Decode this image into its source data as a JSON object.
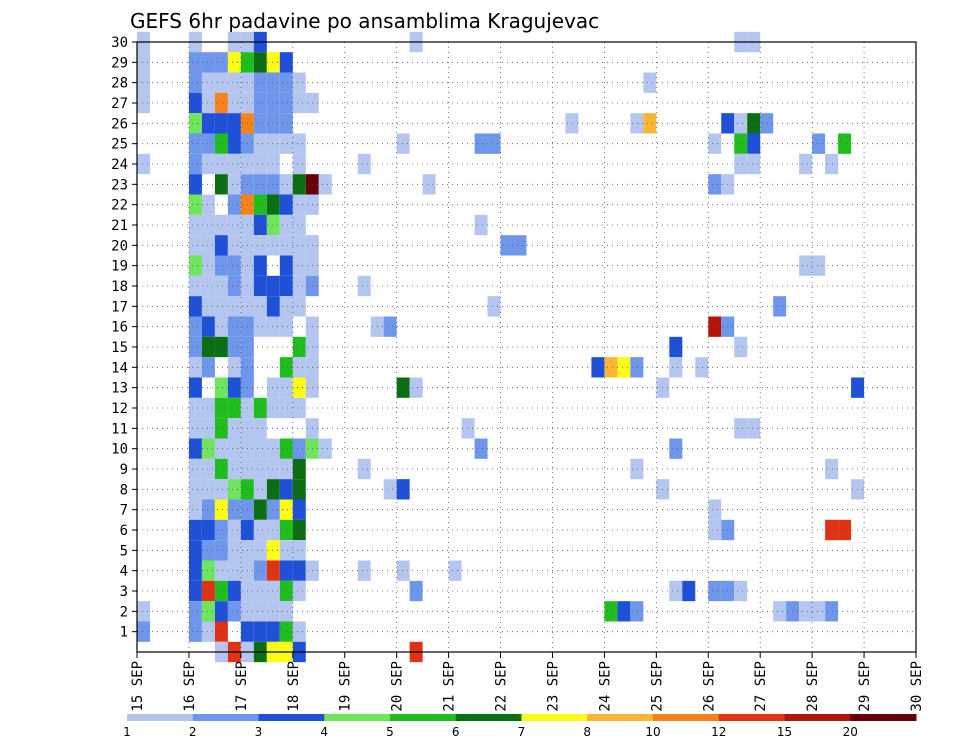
{
  "chart_data": {
    "type": "heatmap",
    "title": "GEFS 6hr padavine po ansamblima Kragujevac",
    "xlabel": "",
    "ylabel": "",
    "x_ticks": [
      "15 SEP",
      "16 SEP",
      "17 SEP",
      "18 SEP",
      "19 SEP",
      "20 SEP",
      "21 SEP",
      "22 SEP",
      "23 SEP",
      "24 SEP",
      "25 SEP",
      "26 SEP",
      "27 SEP",
      "28 SEP",
      "29 SEP",
      "30 SEP"
    ],
    "x_range_days": [
      15,
      30
    ],
    "y_range": [
      0,
      30
    ],
    "y_ticks": [
      1,
      2,
      3,
      4,
      5,
      6,
      7,
      8,
      9,
      10,
      11,
      12,
      13,
      14,
      15,
      16,
      17,
      18,
      19,
      20,
      21,
      22,
      23,
      24,
      25,
      26,
      27,
      28,
      29,
      30
    ],
    "grid": true,
    "colorbar": {
      "bins": [
        1,
        2,
        3,
        4,
        5,
        6,
        7,
        8,
        10,
        12,
        15,
        20
      ],
      "labels": [
        "1",
        "2",
        "3",
        "4",
        "5",
        "6",
        "7",
        "8",
        "10",
        "12",
        "15",
        "20"
      ],
      "colors": [
        "#b4c6f0",
        "#6e97ec",
        "#1f50d8",
        "#6fe45d",
        "#1fbe1e",
        "#0b6e12",
        "#fcfc14",
        "#fcb434",
        "#f6821a",
        "#e03214",
        "#b4140a",
        "#64000a"
      ]
    },
    "cells_note": "Each cell: [day_index (6h steps from 15 SEP 00z), member, colour class 0-11 (0 = 1 mm bin)]",
    "cells": [
      [
        0,
        30,
        0
      ],
      [
        0,
        29,
        0
      ],
      [
        0,
        28,
        0
      ],
      [
        0,
        27,
        0
      ],
      [
        0,
        24,
        0
      ],
      [
        0,
        2,
        0
      ],
      [
        0,
        1,
        1
      ],
      [
        4,
        30,
        0
      ],
      [
        4,
        29,
        1
      ],
      [
        4,
        28,
        1
      ],
      [
        4,
        27,
        2
      ],
      [
        4,
        26,
        3
      ],
      [
        4,
        25,
        1
      ],
      [
        4,
        24,
        1
      ],
      [
        4,
        23,
        2
      ],
      [
        4,
        22,
        3
      ],
      [
        4,
        21,
        0
      ],
      [
        4,
        20,
        0
      ],
      [
        4,
        19,
        3
      ],
      [
        4,
        18,
        0
      ],
      [
        4,
        17,
        2
      ],
      [
        4,
        16,
        1
      ],
      [
        4,
        15,
        1
      ],
      [
        4,
        14,
        0
      ],
      [
        4,
        13,
        2
      ],
      [
        4,
        12,
        0
      ],
      [
        4,
        11,
        0
      ],
      [
        4,
        10,
        2
      ],
      [
        4,
        9,
        0
      ],
      [
        4,
        8,
        0
      ],
      [
        4,
        7,
        0
      ],
      [
        4,
        6,
        2
      ],
      [
        4,
        5,
        2
      ],
      [
        4,
        4,
        2
      ],
      [
        4,
        3,
        2
      ],
      [
        4,
        2,
        1
      ],
      [
        4,
        1,
        1
      ],
      [
        5,
        29,
        1
      ],
      [
        5,
        28,
        0
      ],
      [
        5,
        27,
        0
      ],
      [
        5,
        26,
        2
      ],
      [
        5,
        25,
        1
      ],
      [
        5,
        24,
        0
      ],
      [
        5,
        22,
        0
      ],
      [
        5,
        21,
        0
      ],
      [
        5,
        20,
        0
      ],
      [
        5,
        19,
        0
      ],
      [
        5,
        18,
        0
      ],
      [
        5,
        17,
        0
      ],
      [
        5,
        16,
        2
      ],
      [
        5,
        15,
        5
      ],
      [
        5,
        14,
        1
      ],
      [
        5,
        12,
        0
      ],
      [
        5,
        11,
        0
      ],
      [
        5,
        10,
        3
      ],
      [
        5,
        9,
        0
      ],
      [
        5,
        8,
        0
      ],
      [
        5,
        7,
        1
      ],
      [
        5,
        6,
        2
      ],
      [
        5,
        5,
        1
      ],
      [
        5,
        4,
        3
      ],
      [
        5,
        3,
        9
      ],
      [
        5,
        2,
        3
      ],
      [
        5,
        1,
        0
      ],
      [
        6,
        29,
        1
      ],
      [
        6,
        28,
        0
      ],
      [
        6,
        27,
        8
      ],
      [
        6,
        26,
        2
      ],
      [
        6,
        25,
        4
      ],
      [
        6,
        24,
        0
      ],
      [
        6,
        23,
        5
      ],
      [
        6,
        21,
        0
      ],
      [
        6,
        20,
        2
      ],
      [
        6,
        19,
        1
      ],
      [
        6,
        18,
        0
      ],
      [
        6,
        17,
        0
      ],
      [
        6,
        16,
        0
      ],
      [
        6,
        15,
        5
      ],
      [
        6,
        13,
        3
      ],
      [
        6,
        12,
        4
      ],
      [
        6,
        11,
        4
      ],
      [
        6,
        10,
        0
      ],
      [
        6,
        9,
        4
      ],
      [
        6,
        8,
        0
      ],
      [
        6,
        7,
        6
      ],
      [
        6,
        6,
        1
      ],
      [
        6,
        5,
        1
      ],
      [
        6,
        4,
        0
      ],
      [
        6,
        3,
        4
      ],
      [
        6,
        2,
        2
      ],
      [
        6,
        1,
        9
      ],
      [
        6,
        0,
        0
      ],
      [
        7,
        30,
        0
      ],
      [
        7,
        29,
        6
      ],
      [
        7,
        28,
        0
      ],
      [
        7,
        27,
        0
      ],
      [
        7,
        26,
        2
      ],
      [
        7,
        25,
        2
      ],
      [
        7,
        24,
        0
      ],
      [
        7,
        23,
        0
      ],
      [
        7,
        22,
        1
      ],
      [
        7,
        21,
        0
      ],
      [
        7,
        20,
        0
      ],
      [
        7,
        19,
        1
      ],
      [
        7,
        18,
        1
      ],
      [
        7,
        17,
        0
      ],
      [
        7,
        16,
        1
      ],
      [
        7,
        15,
        1
      ],
      [
        7,
        14,
        0
      ],
      [
        7,
        13,
        2
      ],
      [
        7,
        12,
        4
      ],
      [
        7,
        11,
        0
      ],
      [
        7,
        10,
        0
      ],
      [
        7,
        9,
        0
      ],
      [
        7,
        8,
        3
      ],
      [
        7,
        7,
        1
      ],
      [
        7,
        6,
        0
      ],
      [
        7,
        5,
        0
      ],
      [
        7,
        4,
        0
      ],
      [
        7,
        3,
        2
      ],
      [
        7,
        2,
        1
      ],
      [
        7,
        0,
        9
      ],
      [
        8,
        30,
        0
      ],
      [
        8,
        29,
        4
      ],
      [
        8,
        28,
        0
      ],
      [
        8,
        27,
        0
      ],
      [
        8,
        26,
        8
      ],
      [
        8,
        25,
        1
      ],
      [
        8,
        24,
        0
      ],
      [
        8,
        23,
        1
      ],
      [
        8,
        22,
        8
      ],
      [
        8,
        21,
        0
      ],
      [
        8,
        20,
        0
      ],
      [
        8,
        19,
        0
      ],
      [
        8,
        18,
        0
      ],
      [
        8,
        17,
        0
      ],
      [
        8,
        16,
        1
      ],
      [
        8,
        15,
        1
      ],
      [
        8,
        14,
        1
      ],
      [
        8,
        13,
        1
      ],
      [
        8,
        12,
        0
      ],
      [
        8,
        11,
        0
      ],
      [
        8,
        10,
        0
      ],
      [
        8,
        9,
        0
      ],
      [
        8,
        8,
        4
      ],
      [
        8,
        7,
        1
      ],
      [
        8,
        6,
        2
      ],
      [
        8,
        5,
        0
      ],
      [
        8,
        4,
        0
      ],
      [
        8,
        3,
        0
      ],
      [
        8,
        2,
        0
      ],
      [
        8,
        1,
        2
      ],
      [
        8,
        0,
        0
      ],
      [
        9,
        30,
        2
      ],
      [
        9,
        29,
        5
      ],
      [
        9,
        28,
        1
      ],
      [
        9,
        27,
        1
      ],
      [
        9,
        26,
        1
      ],
      [
        9,
        25,
        0
      ],
      [
        9,
        24,
        0
      ],
      [
        9,
        23,
        1
      ],
      [
        9,
        22,
        4
      ],
      [
        9,
        21,
        2
      ],
      [
        9,
        20,
        0
      ],
      [
        9,
        19,
        2
      ],
      [
        9,
        18,
        2
      ],
      [
        9,
        17,
        0
      ],
      [
        9,
        16,
        0
      ],
      [
        9,
        12,
        4
      ],
      [
        9,
        11,
        0
      ],
      [
        9,
        10,
        0
      ],
      [
        9,
        9,
        0
      ],
      [
        9,
        8,
        0
      ],
      [
        9,
        7,
        5
      ],
      [
        9,
        6,
        0
      ],
      [
        9,
        5,
        0
      ],
      [
        9,
        4,
        1
      ],
      [
        9,
        3,
        0
      ],
      [
        9,
        2,
        0
      ],
      [
        9,
        1,
        2
      ],
      [
        9,
        0,
        5
      ],
      [
        10,
        29,
        6
      ],
      [
        10,
        28,
        1
      ],
      [
        10,
        27,
        1
      ],
      [
        10,
        26,
        1
      ],
      [
        10,
        25,
        0
      ],
      [
        10,
        24,
        0
      ],
      [
        10,
        23,
        1
      ],
      [
        10,
        22,
        5
      ],
      [
        10,
        21,
        3
      ],
      [
        10,
        20,
        0
      ],
      [
        10,
        18,
        2
      ],
      [
        10,
        17,
        2
      ],
      [
        10,
        16,
        0
      ],
      [
        10,
        13,
        0
      ],
      [
        10,
        12,
        0
      ],
      [
        10,
        10,
        0
      ],
      [
        10,
        9,
        0
      ],
      [
        10,
        8,
        5
      ],
      [
        10,
        7,
        1
      ],
      [
        10,
        6,
        0
      ],
      [
        10,
        5,
        6
      ],
      [
        10,
        4,
        9
      ],
      [
        10,
        3,
        0
      ],
      [
        10,
        2,
        0
      ],
      [
        10,
        1,
        2
      ],
      [
        10,
        0,
        6
      ],
      [
        11,
        29,
        2
      ],
      [
        11,
        28,
        1
      ],
      [
        11,
        27,
        1
      ],
      [
        11,
        26,
        1
      ],
      [
        11,
        25,
        0
      ],
      [
        11,
        23,
        0
      ],
      [
        11,
        22,
        2
      ],
      [
        11,
        21,
        0
      ],
      [
        11,
        20,
        0
      ],
      [
        11,
        19,
        2
      ],
      [
        11,
        18,
        2
      ],
      [
        11,
        17,
        0
      ],
      [
        11,
        16,
        0
      ],
      [
        11,
        14,
        4
      ],
      [
        11,
        13,
        0
      ],
      [
        11,
        12,
        0
      ],
      [
        11,
        10,
        4
      ],
      [
        11,
        9,
        0
      ],
      [
        11,
        8,
        2
      ],
      [
        11,
        7,
        6
      ],
      [
        11,
        6,
        4
      ],
      [
        11,
        5,
        0
      ],
      [
        11,
        4,
        2
      ],
      [
        11,
        3,
        4
      ],
      [
        11,
        2,
        0
      ],
      [
        11,
        1,
        4
      ],
      [
        11,
        0,
        6
      ],
      [
        12,
        28,
        0
      ],
      [
        12,
        27,
        0
      ],
      [
        12,
        25,
        0
      ],
      [
        12,
        24,
        0
      ],
      [
        12,
        23,
        5
      ],
      [
        12,
        22,
        0
      ],
      [
        12,
        21,
        0
      ],
      [
        12,
        20,
        0
      ],
      [
        12,
        19,
        0
      ],
      [
        12,
        18,
        0
      ],
      [
        12,
        17,
        0
      ],
      [
        12,
        15,
        4
      ],
      [
        12,
        14,
        0
      ],
      [
        12,
        13,
        6
      ],
      [
        12,
        12,
        0
      ],
      [
        12,
        10,
        1
      ],
      [
        12,
        9,
        5
      ],
      [
        12,
        8,
        5
      ],
      [
        12,
        7,
        2
      ],
      [
        12,
        6,
        5
      ],
      [
        12,
        5,
        0
      ],
      [
        12,
        4,
        2
      ],
      [
        12,
        3,
        0
      ],
      [
        12,
        1,
        0
      ],
      [
        12,
        0,
        2
      ],
      [
        13,
        27,
        0
      ],
      [
        13,
        23,
        11
      ],
      [
        13,
        22,
        0
      ],
      [
        13,
        20,
        0
      ],
      [
        13,
        19,
        0
      ],
      [
        13,
        18,
        1
      ],
      [
        13,
        16,
        0
      ],
      [
        13,
        15,
        0
      ],
      [
        13,
        14,
        0
      ],
      [
        13,
        13,
        0
      ],
      [
        13,
        11,
        0
      ],
      [
        13,
        10,
        3
      ],
      [
        13,
        4,
        0
      ],
      [
        14,
        23,
        0
      ],
      [
        14,
        10,
        0
      ],
      [
        17,
        24,
        0
      ],
      [
        17,
        18,
        0
      ],
      [
        17,
        9,
        0
      ],
      [
        17,
        4,
        0
      ],
      [
        18,
        16,
        0
      ],
      [
        19,
        16,
        1
      ],
      [
        19,
        8,
        0
      ],
      [
        20,
        25,
        0
      ],
      [
        20,
        13,
        5
      ],
      [
        20,
        8,
        2
      ],
      [
        20,
        4,
        0
      ],
      [
        21,
        30,
        0
      ],
      [
        21,
        13,
        0
      ],
      [
        21,
        3,
        1
      ],
      [
        21,
        0,
        9
      ],
      [
        22,
        23,
        0
      ],
      [
        24,
        4,
        0
      ],
      [
        25,
        11,
        0
      ],
      [
        26,
        25,
        1
      ],
      [
        26,
        21,
        0
      ],
      [
        26,
        10,
        1
      ],
      [
        27,
        25,
        1
      ],
      [
        27,
        17,
        0
      ],
      [
        28,
        20,
        1
      ],
      [
        29,
        20,
        1
      ],
      [
        33,
        26,
        0
      ],
      [
        35,
        14,
        2
      ],
      [
        36,
        14,
        7
      ],
      [
        36,
        2,
        4
      ],
      [
        37,
        14,
        6
      ],
      [
        37,
        2,
        2
      ],
      [
        38,
        26,
        0
      ],
      [
        38,
        14,
        1
      ],
      [
        38,
        9,
        0
      ],
      [
        38,
        2,
        1
      ],
      [
        39,
        28,
        0
      ],
      [
        39,
        26,
        7
      ],
      [
        40,
        13,
        0
      ],
      [
        40,
        8,
        0
      ],
      [
        41,
        15,
        2
      ],
      [
        41,
        14,
        0
      ],
      [
        41,
        10,
        1
      ],
      [
        41,
        3,
        0
      ],
      [
        42,
        3,
        2
      ],
      [
        43,
        14,
        0
      ],
      [
        44,
        16,
        10
      ],
      [
        44,
        25,
        0
      ],
      [
        44,
        23,
        1
      ],
      [
        44,
        7,
        0
      ],
      [
        44,
        6,
        0
      ],
      [
        44,
        3,
        1
      ],
      [
        45,
        26,
        2
      ],
      [
        45,
        23,
        0
      ],
      [
        45,
        16,
        1
      ],
      [
        45,
        6,
        1
      ],
      [
        45,
        3,
        1
      ],
      [
        46,
        30,
        0
      ],
      [
        46,
        26,
        0
      ],
      [
        46,
        25,
        4
      ],
      [
        46,
        24,
        0
      ],
      [
        46,
        15,
        0
      ],
      [
        46,
        11,
        0
      ],
      [
        46,
        3,
        0
      ],
      [
        47,
        30,
        0
      ],
      [
        47,
        26,
        5
      ],
      [
        47,
        25,
        2
      ],
      [
        47,
        24,
        0
      ],
      [
        47,
        11,
        0
      ],
      [
        48,
        26,
        1
      ],
      [
        49,
        17,
        1
      ],
      [
        49,
        2,
        0
      ],
      [
        50,
        2,
        1
      ],
      [
        51,
        24,
        0
      ],
      [
        51,
        19,
        0
      ],
      [
        51,
        2,
        0
      ],
      [
        52,
        25,
        1
      ],
      [
        52,
        19,
        0
      ],
      [
        52,
        2,
        0
      ],
      [
        53,
        24,
        0
      ],
      [
        53,
        9,
        0
      ],
      [
        53,
        6,
        9
      ],
      [
        53,
        2,
        1
      ],
      [
        54,
        25,
        4
      ],
      [
        54,
        6,
        9
      ],
      [
        55,
        13,
        2
      ],
      [
        55,
        8,
        0
      ]
    ]
  }
}
